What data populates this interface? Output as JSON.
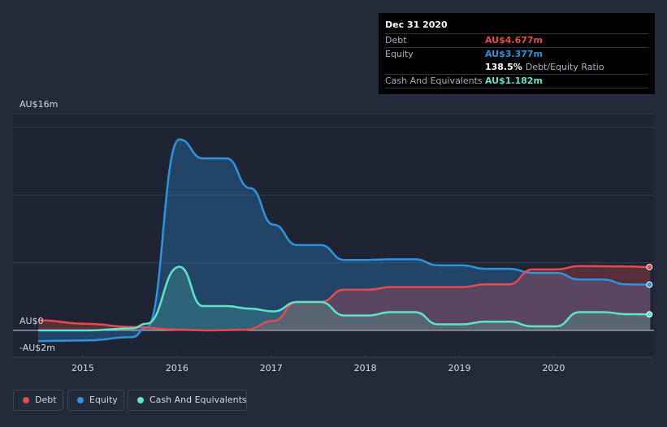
{
  "chart_data": {
    "type": "area",
    "title": "",
    "xlabel": "",
    "ylabel": "",
    "ylim": [
      -2,
      16
    ],
    "y_tick_labels": [
      "AU$16m",
      "AU$0",
      "-AU$2m"
    ],
    "x_tick_labels": [
      "2015",
      "2016",
      "2017",
      "2018",
      "2019",
      "2020"
    ],
    "series": [
      {
        "name": "Debt",
        "color": "#e84b4f",
        "points": [
          [
            2014.5,
            0.75
          ],
          [
            2015.0,
            0.5
          ],
          [
            2015.5,
            0.25
          ],
          [
            2016.0,
            0.05
          ],
          [
            2016.3,
            0.0
          ],
          [
            2016.7,
            0.05
          ],
          [
            2017.0,
            0.7
          ],
          [
            2017.25,
            2.1
          ],
          [
            2017.5,
            2.1
          ],
          [
            2017.75,
            3.0
          ],
          [
            2018.0,
            3.0
          ],
          [
            2018.25,
            3.2
          ],
          [
            2018.75,
            3.2
          ],
          [
            2019.0,
            3.2
          ],
          [
            2019.25,
            3.4
          ],
          [
            2019.5,
            3.4
          ],
          [
            2019.75,
            4.5
          ],
          [
            2020.0,
            4.5
          ],
          [
            2020.25,
            4.75
          ],
          [
            2020.75,
            4.72
          ],
          [
            2021.0,
            4.677
          ]
        ]
      },
      {
        "name": "Equity",
        "color": "#2f93e0",
        "points": [
          [
            2014.5,
            -0.8
          ],
          [
            2015.0,
            -0.75
          ],
          [
            2015.5,
            -0.5
          ],
          [
            2015.65,
            0.2
          ],
          [
            2016.0,
            14.1
          ],
          [
            2016.25,
            12.7
          ],
          [
            2016.5,
            12.7
          ],
          [
            2016.75,
            10.5
          ],
          [
            2017.0,
            7.8
          ],
          [
            2017.25,
            6.3
          ],
          [
            2017.5,
            6.3
          ],
          [
            2017.75,
            5.2
          ],
          [
            2018.0,
            5.2
          ],
          [
            2018.25,
            5.25
          ],
          [
            2018.5,
            5.25
          ],
          [
            2018.75,
            4.8
          ],
          [
            2019.0,
            4.8
          ],
          [
            2019.25,
            4.55
          ],
          [
            2019.5,
            4.55
          ],
          [
            2019.75,
            4.25
          ],
          [
            2020.0,
            4.25
          ],
          [
            2020.25,
            3.75
          ],
          [
            2020.5,
            3.75
          ],
          [
            2020.75,
            3.4
          ],
          [
            2021.0,
            3.377
          ]
        ]
      },
      {
        "name": "Cash And Equivalents",
        "color": "#5fe3c9",
        "points": [
          [
            2014.5,
            0.0
          ],
          [
            2015.0,
            0.0
          ],
          [
            2015.5,
            0.15
          ],
          [
            2015.65,
            0.5
          ],
          [
            2016.0,
            4.7
          ],
          [
            2016.25,
            1.8
          ],
          [
            2016.5,
            1.8
          ],
          [
            2016.75,
            1.6
          ],
          [
            2017.0,
            1.4
          ],
          [
            2017.25,
            2.1
          ],
          [
            2017.5,
            2.1
          ],
          [
            2017.75,
            1.1
          ],
          [
            2018.0,
            1.1
          ],
          [
            2018.25,
            1.35
          ],
          [
            2018.5,
            1.35
          ],
          [
            2018.75,
            0.45
          ],
          [
            2019.0,
            0.45
          ],
          [
            2019.25,
            0.65
          ],
          [
            2019.5,
            0.65
          ],
          [
            2019.75,
            0.3
          ],
          [
            2020.0,
            0.3
          ],
          [
            2020.25,
            1.35
          ],
          [
            2020.5,
            1.35
          ],
          [
            2020.75,
            1.2
          ],
          [
            2021.0,
            1.182
          ]
        ]
      }
    ],
    "legend": [
      "Debt",
      "Equity",
      "Cash And Equivalents"
    ],
    "legend_position": "bottom-left",
    "grid": true
  },
  "tooltip": {
    "date": "Dec 31 2020",
    "debt_label": "Debt",
    "debt_value": "AU$4.677m",
    "equity_label": "Equity",
    "equity_value": "AU$3.377m",
    "ratio_value": "138.5%",
    "ratio_label": "Debt/Equity Ratio",
    "cash_label": "Cash And Equivalents",
    "cash_value": "AU$1.182m"
  },
  "colors": {
    "background": "#232a3a",
    "debt": "#e84b4f",
    "equity": "#2f93e0",
    "cash": "#5fe3c9"
  }
}
